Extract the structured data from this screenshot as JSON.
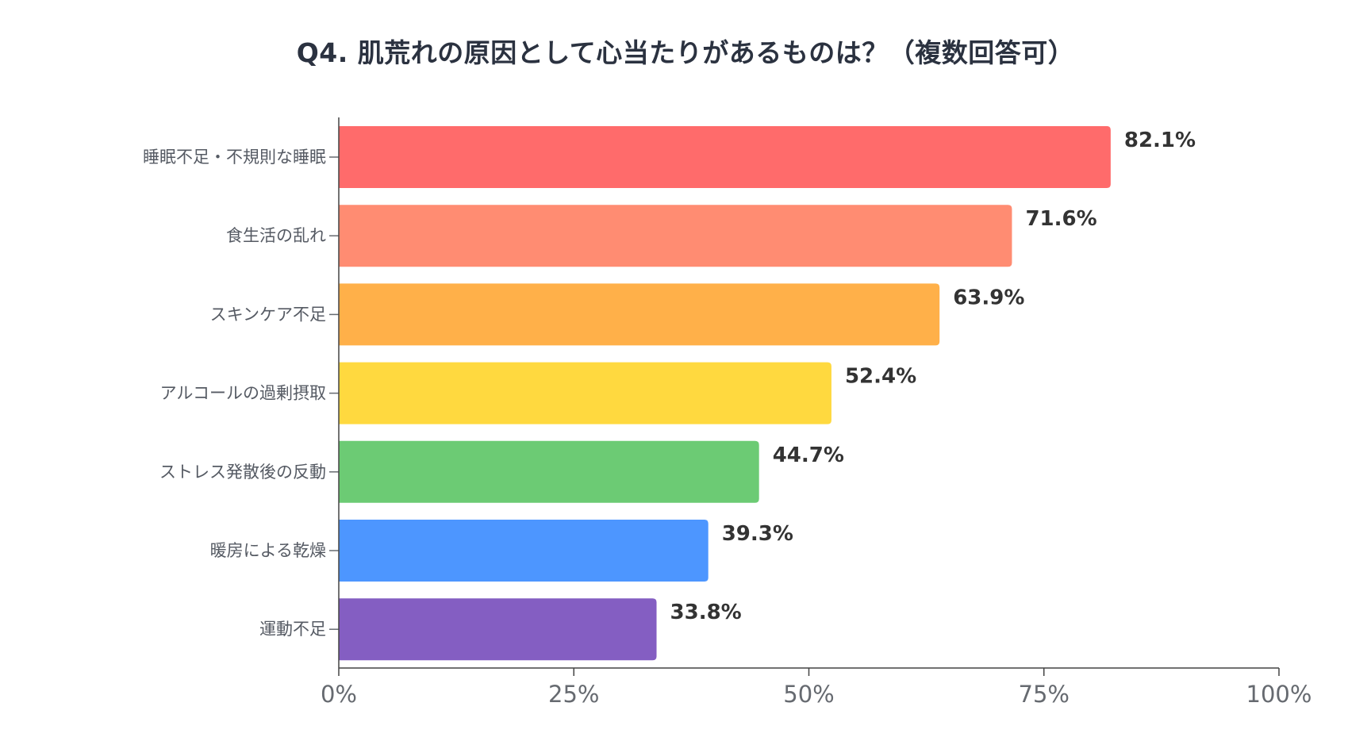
{
  "chart_data": {
    "type": "bar",
    "orientation": "horizontal",
    "title": "Q4. 肌荒れの原因として心当たりがあるものは？（複数回答可）",
    "categories": [
      "睡眠不足・不規則な睡眠",
      "食生活の乱れ",
      "スキンケア不足",
      "アルコールの過剰摂取",
      "ストレス発散後の反動",
      "暖房による乾燥",
      "運動不足"
    ],
    "values": [
      82.1,
      71.6,
      63.9,
      52.4,
      44.7,
      39.3,
      33.8
    ],
    "value_labels": [
      "82.1%",
      "71.6%",
      "63.9%",
      "52.4%",
      "44.7%",
      "39.3%",
      "33.8%"
    ],
    "colors": [
      "#ff6b6b",
      "#ff8c72",
      "#ffb049",
      "#ffd93f",
      "#6ccb74",
      "#4d96ff",
      "#845ec2"
    ],
    "xlim": [
      0,
      100
    ],
    "xticks": [
      0,
      25,
      50,
      75,
      100
    ],
    "xtick_labels": [
      "0%",
      "25%",
      "50%",
      "75%",
      "100%"
    ],
    "xlabel": "",
    "ylabel": "",
    "grid": false,
    "legend": "none"
  }
}
